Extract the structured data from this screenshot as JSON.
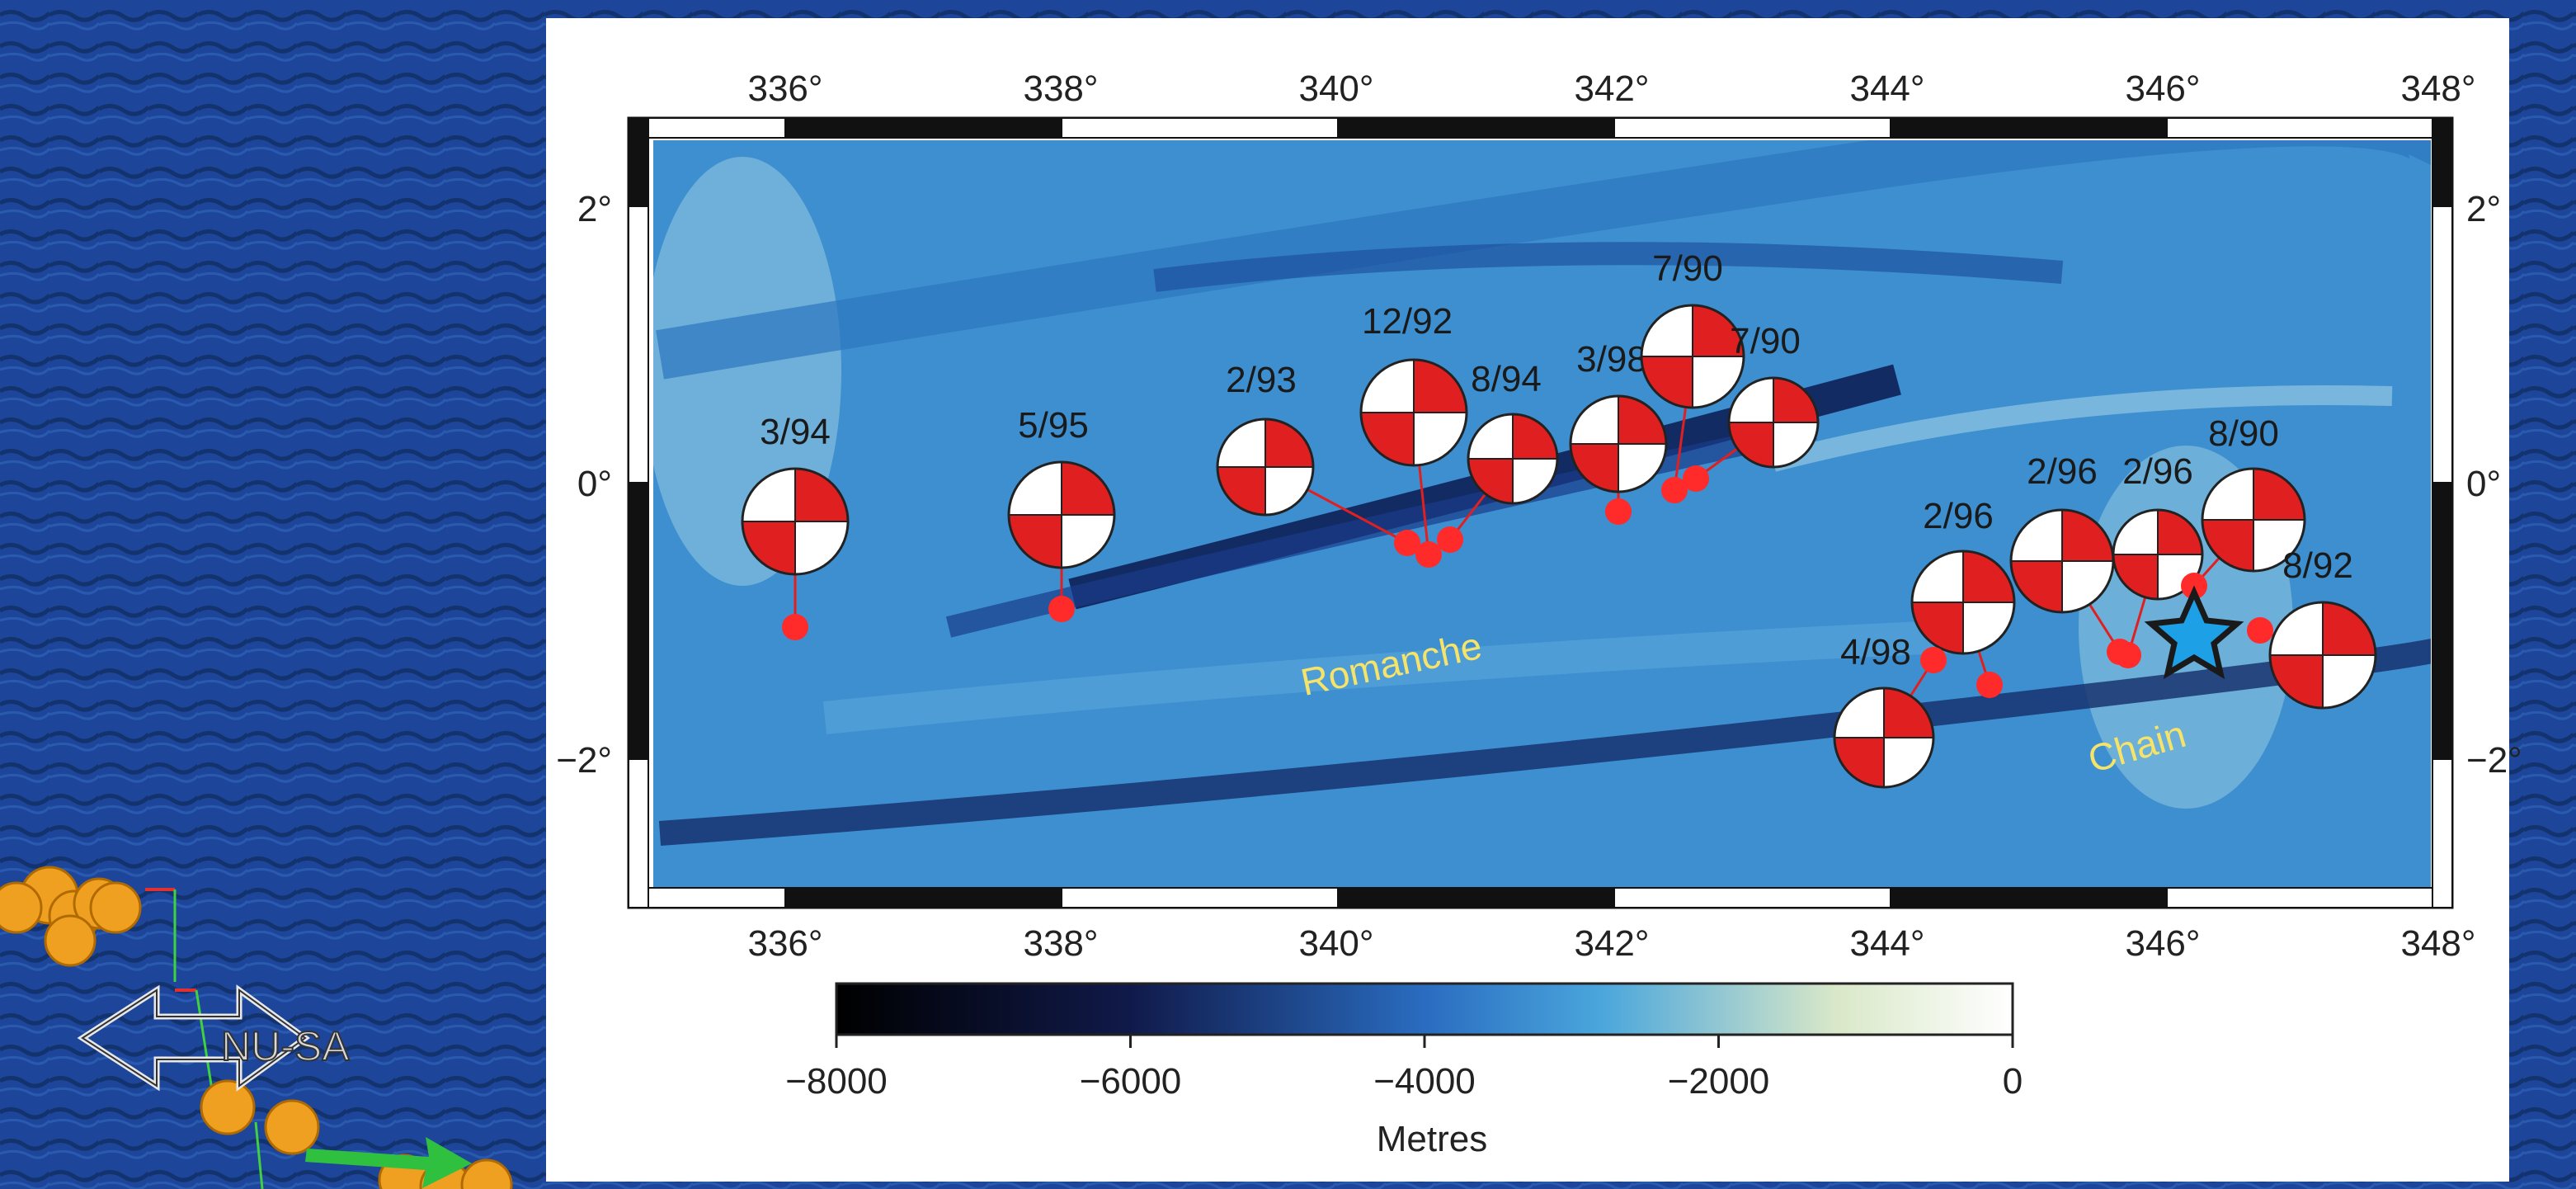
{
  "map": {
    "x_ticks": [
      "336°",
      "338°",
      "340°",
      "342°",
      "344°",
      "346°",
      "348°"
    ],
    "y_ticks": [
      "2°",
      "0°",
      "−2°"
    ],
    "features": [
      {
        "name": "Romanche",
        "color": "#f5e36a"
      },
      {
        "name": "Chain",
        "color": "#f5e36a"
      }
    ],
    "events": [
      {
        "label": "3/94"
      },
      {
        "label": "5/95"
      },
      {
        "label": "2/93"
      },
      {
        "label": "12/92"
      },
      {
        "label": "8/94"
      },
      {
        "label": "3/98"
      },
      {
        "label": "7/90"
      },
      {
        "label": "7/90"
      },
      {
        "label": "2/96"
      },
      {
        "label": "2/96"
      },
      {
        "label": "2/96"
      },
      {
        "label": "8/90"
      },
      {
        "label": "8/92"
      },
      {
        "label": "4/98"
      }
    ],
    "epicenter_symbol": "star-icon",
    "beachball_color": "#e02020",
    "epicenter_color": "#ff2a2a",
    "star_color": "#1ea0e6"
  },
  "colorbar": {
    "ticks": [
      "−8000",
      "−6000",
      "−4000",
      "−2000",
      "0"
    ],
    "label": "Metres"
  },
  "overlay": {
    "plate_label": "NU-SA",
    "arrow_icon": "double-arrow-icon",
    "velocity_icon": "green-arrow-icon"
  }
}
